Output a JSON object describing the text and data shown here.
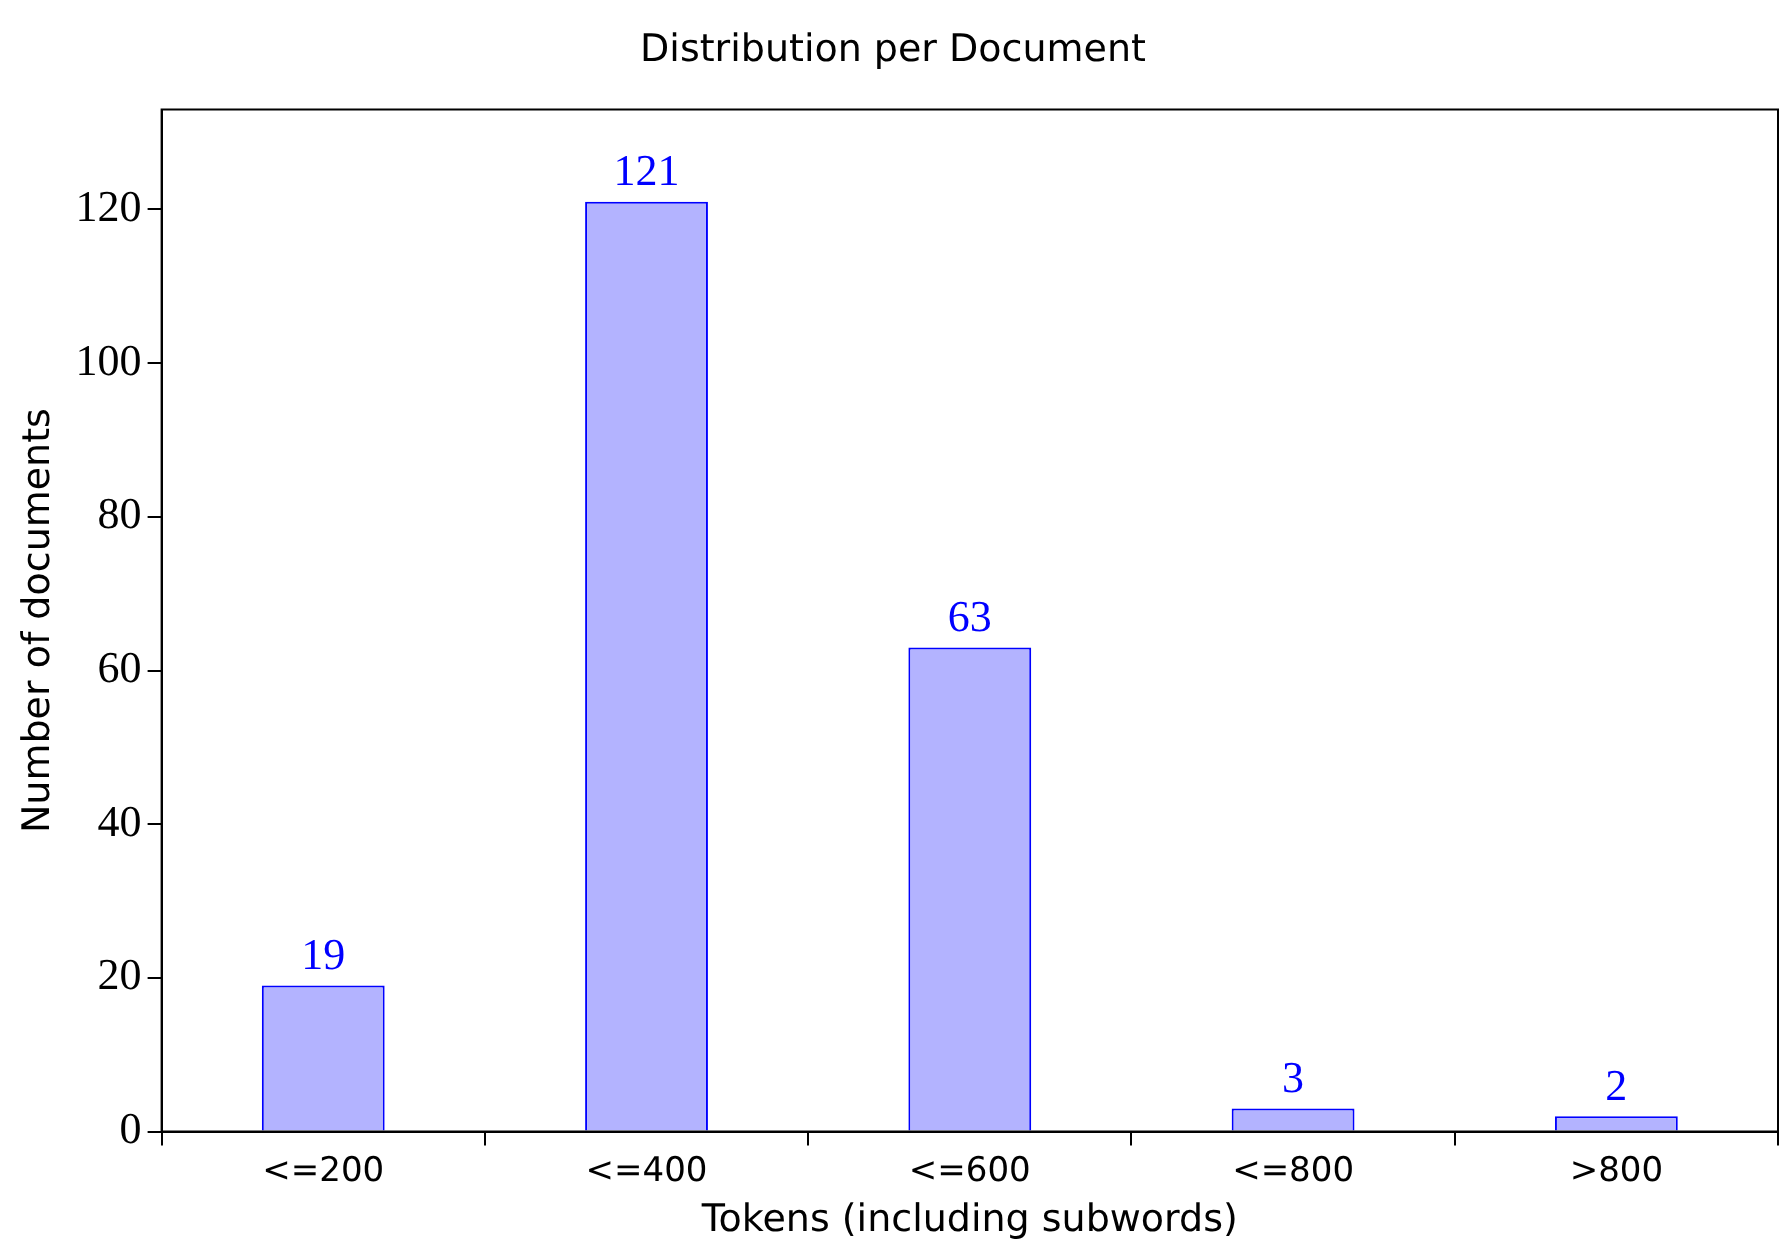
{
  "chart_data": {
    "type": "bar",
    "title": "Distribution per Document",
    "xlabel": "Tokens (including subwords)",
    "ylabel": "Number of documents",
    "categories": [
      "<=200",
      "<=400",
      "<=600",
      "<=800",
      ">800"
    ],
    "series": [
      {
        "color": "#b3b3ff",
        "values": [
          19,
          121,
          63,
          3,
          2
        ]
      }
    ],
    "ylim": [
      0,
      133
    ],
    "yticks": [
      0,
      20,
      40,
      60,
      80,
      100,
      120
    ],
    "grid": false,
    "legend": false,
    "data_labels": true
  }
}
